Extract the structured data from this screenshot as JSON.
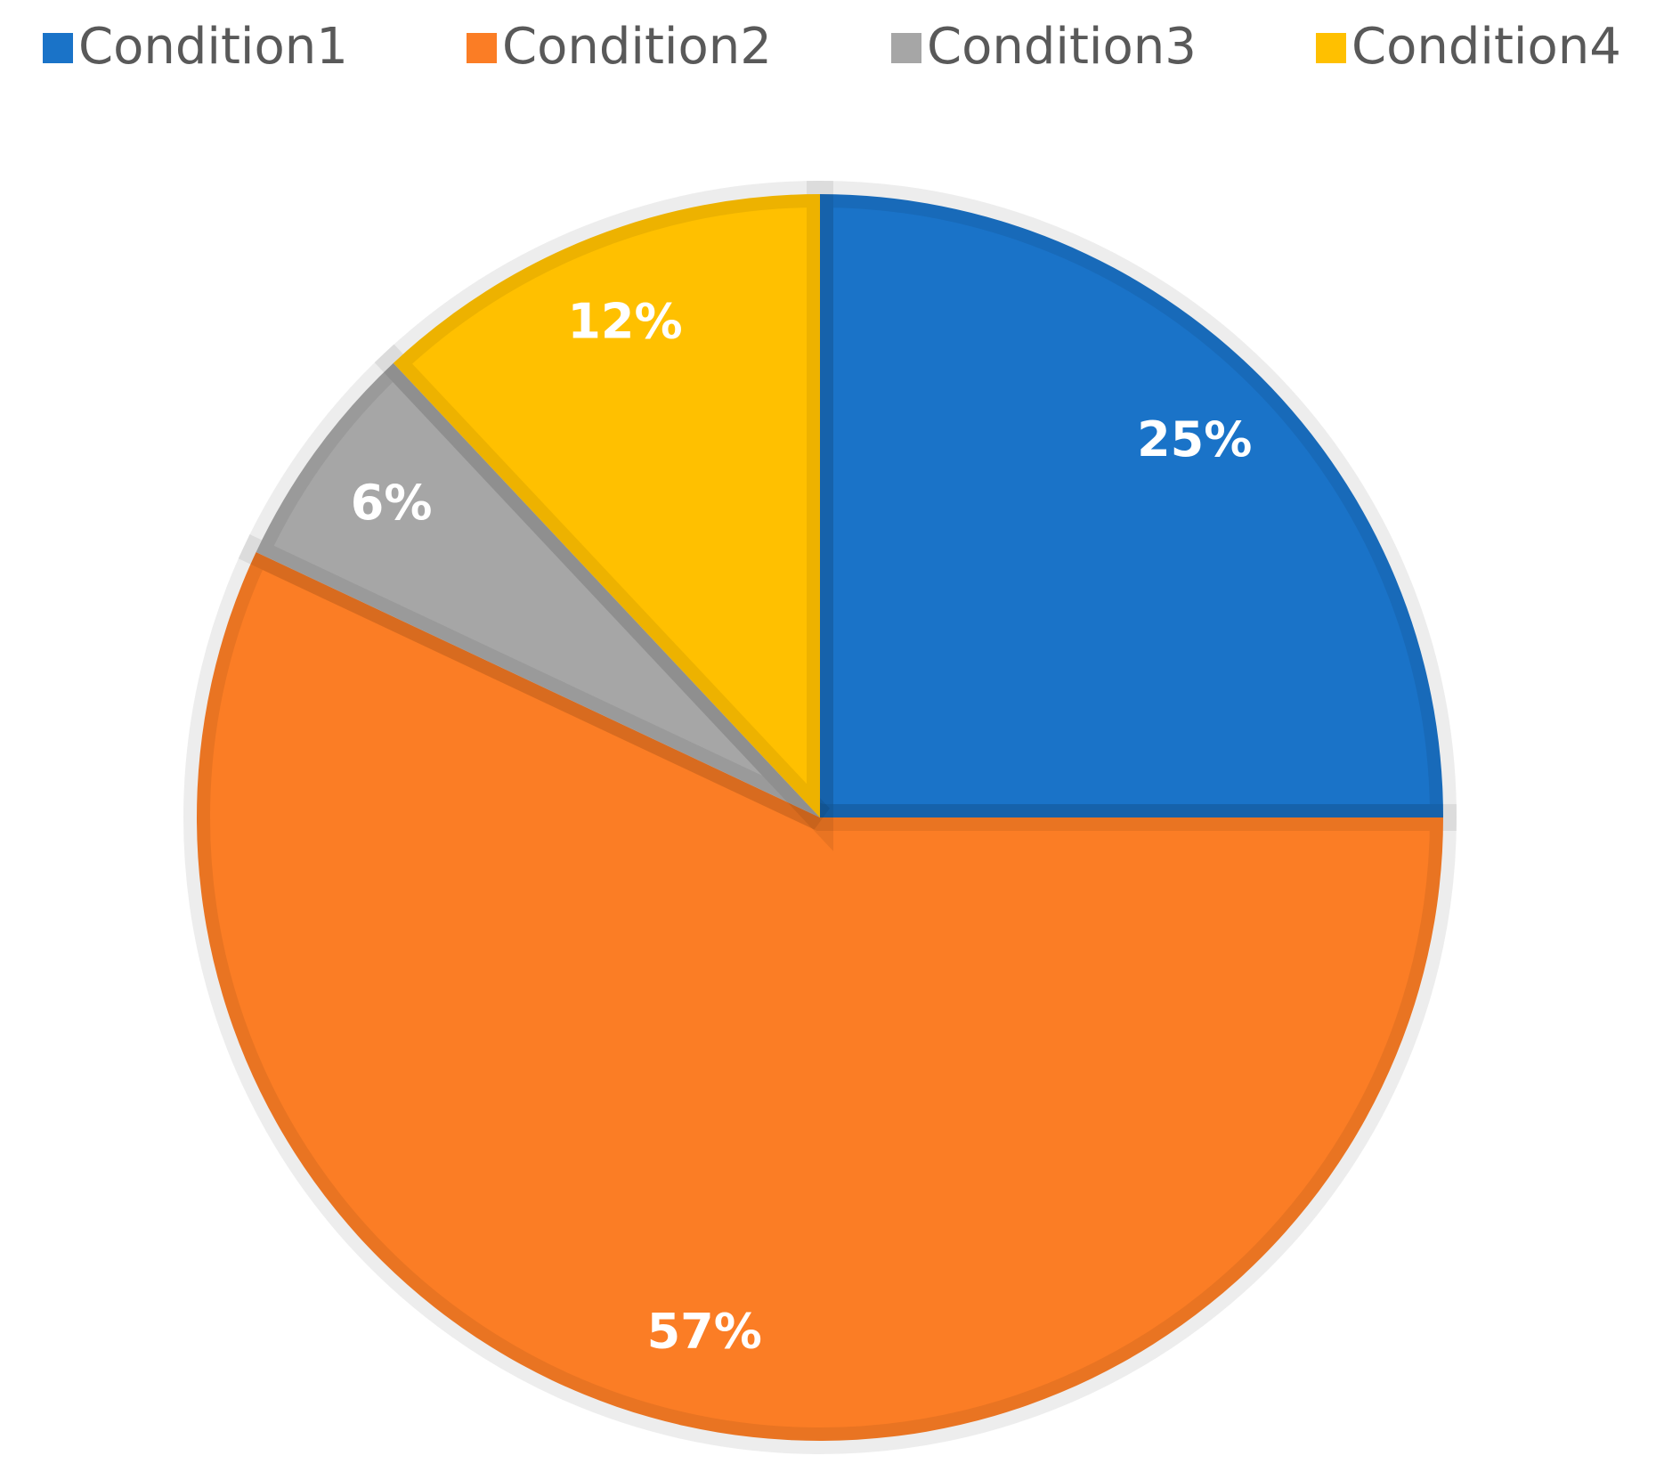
{
  "chart_data": {
    "type": "pie",
    "categories": [
      "Condition1",
      "Condition2",
      "Condition3",
      "Condition4"
    ],
    "values": [
      25,
      57,
      6,
      12
    ],
    "value_labels": [
      "25%",
      "57%",
      "6%",
      "12%"
    ],
    "colors": [
      "#1a73c8",
      "#fb7d25",
      "#a6a6a6",
      "#ffc000"
    ],
    "legend": "top"
  }
}
